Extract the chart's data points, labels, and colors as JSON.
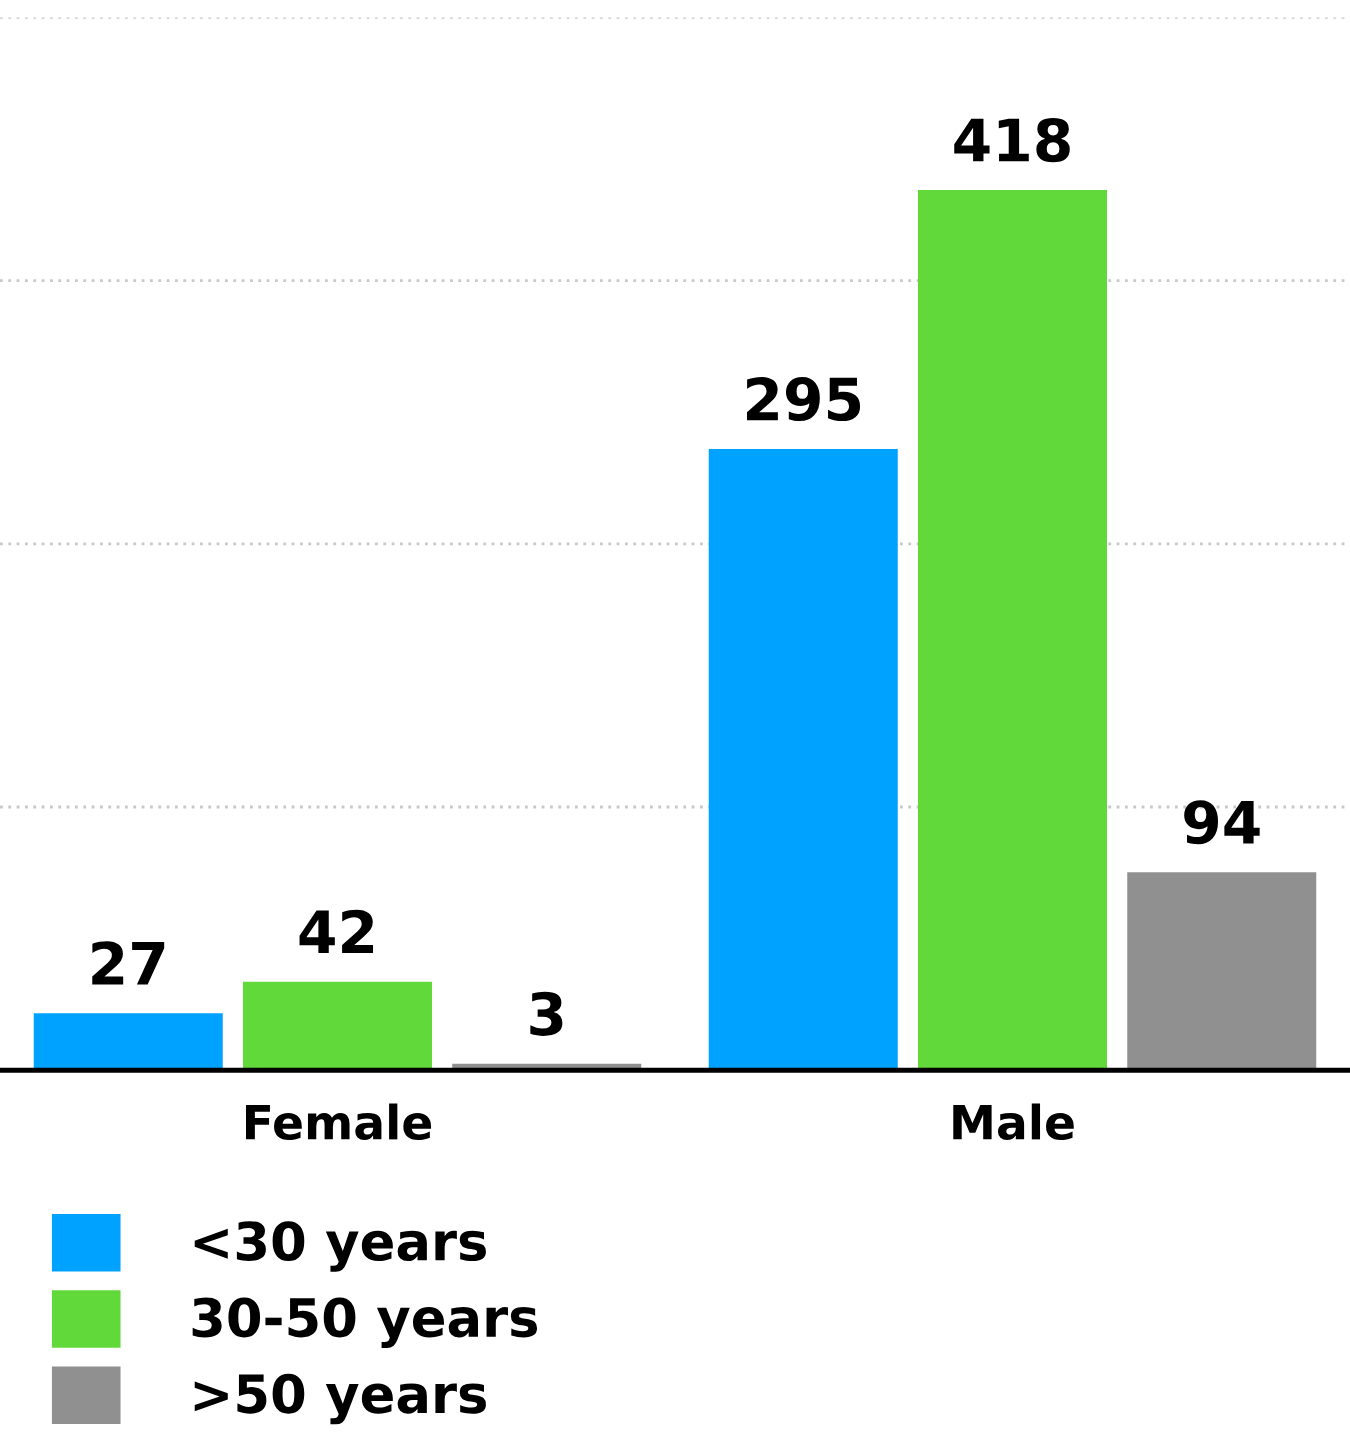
{
  "chart_data": {
    "type": "bar",
    "categories": [
      "Female",
      "Male"
    ],
    "series": [
      {
        "name": "<30 years",
        "color": "#00a2ff",
        "values": [
          27,
          295
        ]
      },
      {
        "name": "30-50 years",
        "color": "#62d93a",
        "values": [
          42,
          418
        ]
      },
      {
        "name": ">50 years",
        "color": "#909090",
        "values": [
          3,
          94
        ]
      }
    ],
    "ylim": [
      0,
      500
    ],
    "yticks": [
      {
        "value": 0,
        "label": null
      },
      {
        "value": 125,
        "label": null
      },
      {
        "value": 250,
        "label": null
      },
      {
        "value": 375,
        "label": null
      },
      {
        "value": 500,
        "label": null
      }
    ],
    "tick_labels": "x",
    "grid": "y",
    "legend": "bottom left",
    "data_labels": true
  }
}
